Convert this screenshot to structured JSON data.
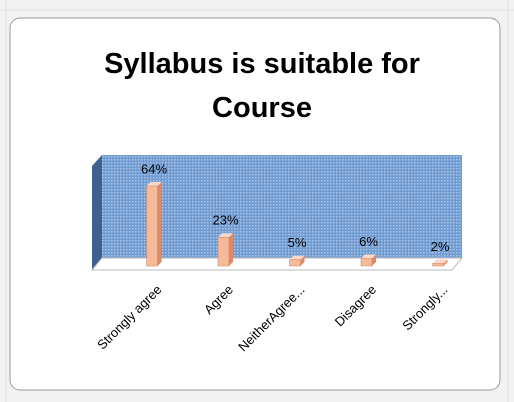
{
  "chart_data": {
    "type": "bar3d",
    "title": "Syllabus is suitable for Course",
    "categories": [
      "Strongly agree",
      "Agree",
      "NeitherAgree...",
      "Disagree",
      "Strongly..."
    ],
    "values": [
      64,
      23,
      5,
      6,
      2
    ],
    "value_labels": [
      "64%",
      "23%",
      "5%",
      "6%",
      "2%"
    ],
    "color": "#f7b99a"
  }
}
